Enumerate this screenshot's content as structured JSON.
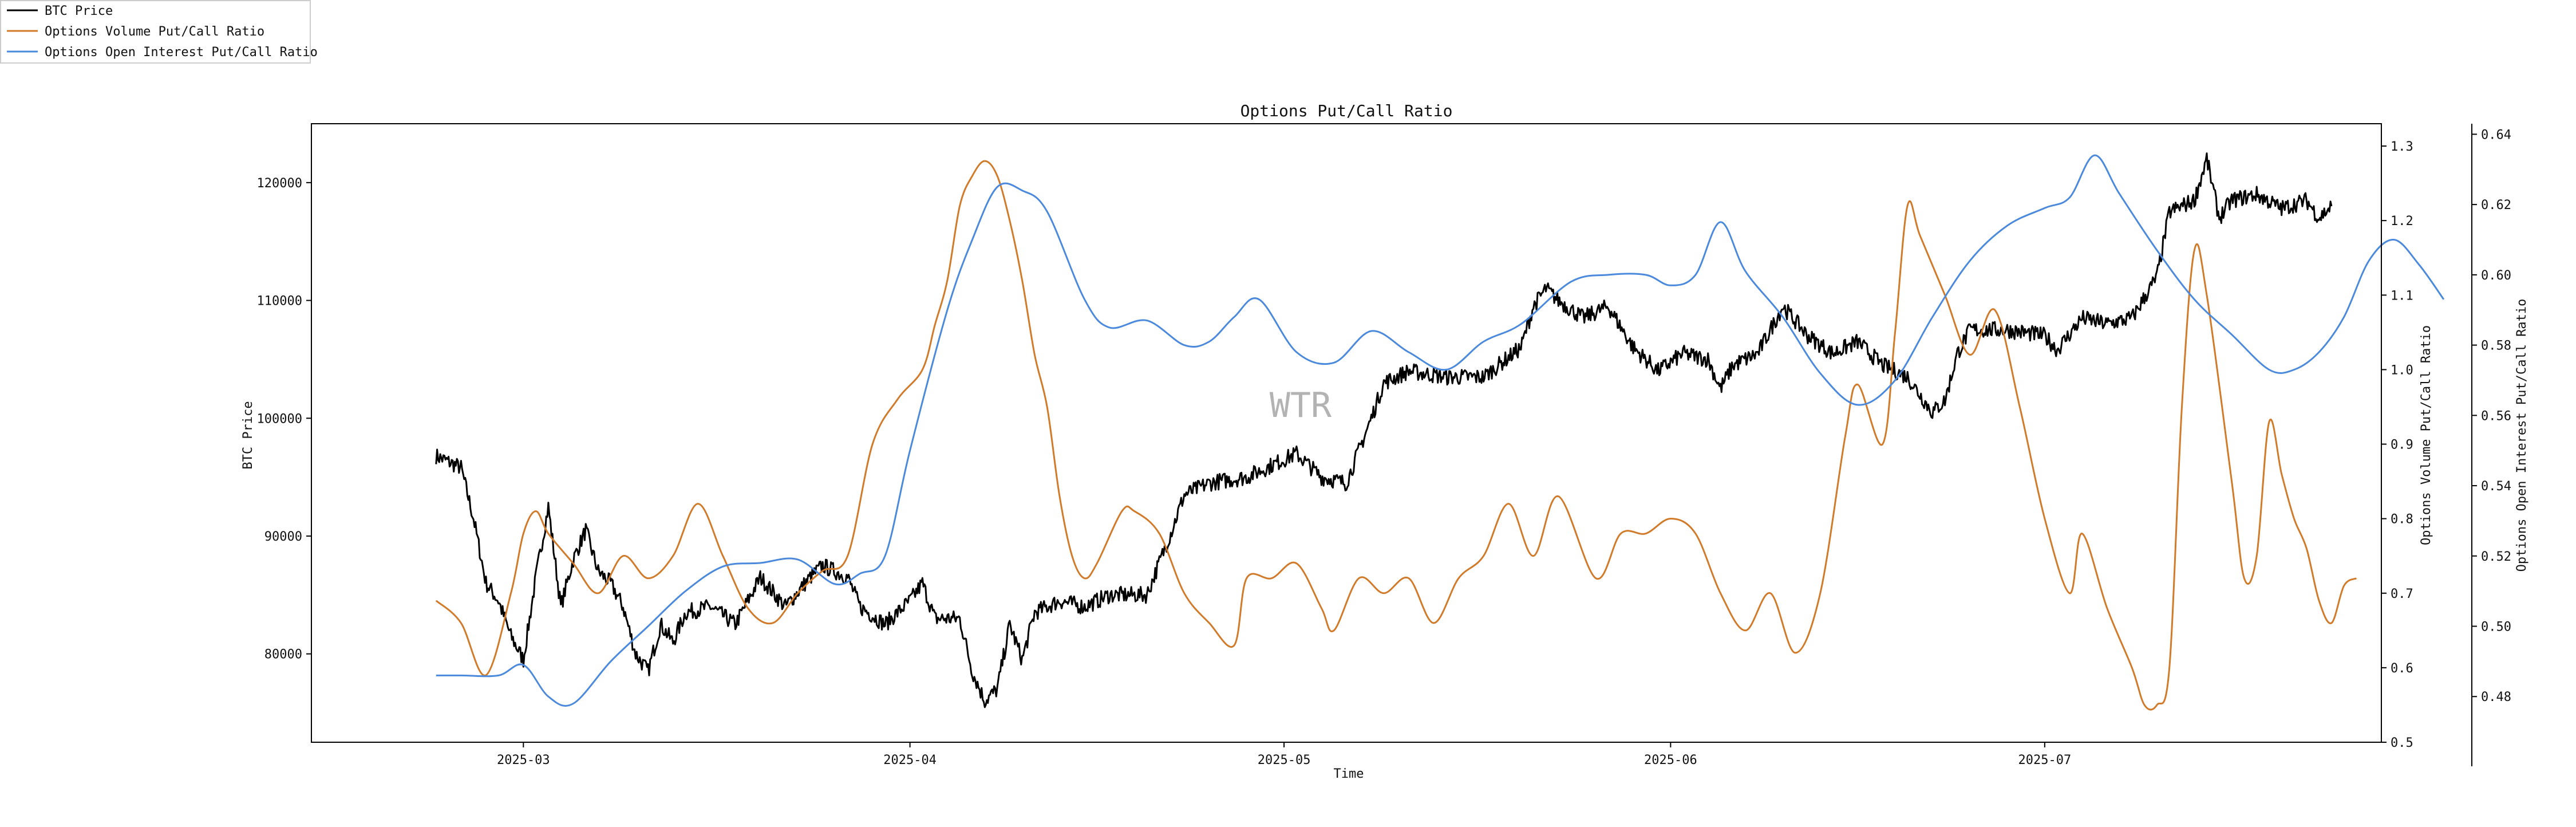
{
  "chart_data": {
    "type": "line",
    "title": "Options Put/Call Ratio",
    "xlabel": "Time",
    "ylabel_left": "BTC Price",
    "ylabel_right1": "Options Volume Put/Call Ratio",
    "ylabel_right2": "Options Open Interest Put/Call Ratio",
    "watermark": "WTR",
    "legend_position": "top-left",
    "grid": false,
    "x_range": [
      "2025-02-12",
      "2025-07-28"
    ],
    "x_ticks": [
      "2025-03",
      "2025-04",
      "2025-05",
      "2025-06",
      "2025-07"
    ],
    "x_tick_dates": [
      "2025-03-01",
      "2025-04-01",
      "2025-05-01",
      "2025-06-01",
      "2025-07-01"
    ],
    "y_left": {
      "lim": [
        72500,
        125000
      ],
      "ticks": [
        80000,
        90000,
        100000,
        110000,
        120000
      ]
    },
    "y_right1": {
      "lim": [
        0.5,
        1.33
      ],
      "ticks": [
        0.5,
        0.6,
        0.7,
        0.8,
        0.9,
        1.0,
        1.1,
        1.2,
        1.3
      ],
      "tick_labels": [
        "0.5",
        "0.6",
        "0.7",
        "0.8",
        "0.9",
        "1.0",
        "1.1",
        "1.2",
        "1.3"
      ]
    },
    "y_right2": {
      "lim": [
        0.467,
        0.643
      ],
      "ticks": [
        0.48,
        0.5,
        0.52,
        0.54,
        0.56,
        0.58,
        0.6,
        0.62,
        0.64
      ],
      "tick_labels": [
        "0.48",
        "0.50",
        "0.52",
        "0.54",
        "0.56",
        "0.58",
        "0.60",
        "0.62",
        "0.64"
      ]
    },
    "series": [
      {
        "name": "BTC Price",
        "axis": "left",
        "color": "#000000",
        "points": [
          [
            "2025-02-22",
            96800
          ],
          [
            "2025-02-24",
            95800
          ],
          [
            "2025-02-25",
            91500
          ],
          [
            "2025-02-26",
            86000
          ],
          [
            "2025-02-27",
            84500
          ],
          [
            "2025-02-28",
            81500
          ],
          [
            "2025-03-01",
            79500
          ],
          [
            "2025-03-02",
            86500
          ],
          [
            "2025-03-03",
            92500
          ],
          [
            "2025-03-04",
            84000
          ],
          [
            "2025-03-05",
            88000
          ],
          [
            "2025-03-06",
            90500
          ],
          [
            "2025-03-07",
            87000
          ],
          [
            "2025-03-08",
            86000
          ],
          [
            "2025-03-09",
            84000
          ],
          [
            "2025-03-10",
            80000
          ],
          [
            "2025-03-11",
            78500
          ],
          [
            "2025-03-12",
            82500
          ],
          [
            "2025-03-13",
            81000
          ],
          [
            "2025-03-14",
            83500
          ],
          [
            "2025-03-16",
            84000
          ],
          [
            "2025-03-18",
            82500
          ],
          [
            "2025-03-20",
            86500
          ],
          [
            "2025-03-22",
            84000
          ],
          [
            "2025-03-24",
            86500
          ],
          [
            "2025-03-25",
            87500
          ],
          [
            "2025-03-27",
            86500
          ],
          [
            "2025-03-28",
            84000
          ],
          [
            "2025-03-30",
            82500
          ],
          [
            "2025-04-01",
            84500
          ],
          [
            "2025-04-02",
            86000
          ],
          [
            "2025-04-03",
            83000
          ],
          [
            "2025-04-05",
            83000
          ],
          [
            "2025-04-06",
            78500
          ],
          [
            "2025-04-07",
            76000
          ],
          [
            "2025-04-08",
            77000
          ],
          [
            "2025-04-09",
            82500
          ],
          [
            "2025-04-10",
            79500
          ],
          [
            "2025-04-11",
            83500
          ],
          [
            "2025-04-13",
            84500
          ],
          [
            "2025-04-15",
            84000
          ],
          [
            "2025-04-17",
            85000
          ],
          [
            "2025-04-20",
            85000
          ],
          [
            "2025-04-22",
            90500
          ],
          [
            "2025-04-23",
            93500
          ],
          [
            "2025-04-25",
            94500
          ],
          [
            "2025-04-28",
            95000
          ],
          [
            "2025-05-01",
            96500
          ],
          [
            "2025-05-02",
            97000
          ],
          [
            "2025-05-04",
            95000
          ],
          [
            "2025-05-06",
            94500
          ],
          [
            "2025-05-08",
            100000
          ],
          [
            "2025-05-09",
            103000
          ],
          [
            "2025-05-11",
            104000
          ],
          [
            "2025-05-14",
            103500
          ],
          [
            "2025-05-17",
            103500
          ],
          [
            "2025-05-20",
            106000
          ],
          [
            "2025-05-21",
            109500
          ],
          [
            "2025-05-22",
            111000
          ],
          [
            "2025-05-23",
            110000
          ],
          [
            "2025-05-25",
            108500
          ],
          [
            "2025-05-27",
            109500
          ],
          [
            "2025-05-29",
            106000
          ],
          [
            "2025-05-31",
            104000
          ],
          [
            "2025-06-02",
            105500
          ],
          [
            "2025-06-04",
            105000
          ],
          [
            "2025-06-05",
            102500
          ],
          [
            "2025-06-06",
            104500
          ],
          [
            "2025-06-08",
            105500
          ],
          [
            "2025-06-10",
            109500
          ],
          [
            "2025-06-12",
            107000
          ],
          [
            "2025-06-14",
            105500
          ],
          [
            "2025-06-16",
            106500
          ],
          [
            "2025-06-18",
            104500
          ],
          [
            "2025-06-20",
            103500
          ],
          [
            "2025-06-22",
            100500
          ],
          [
            "2025-06-23",
            101500
          ],
          [
            "2025-06-24",
            105500
          ],
          [
            "2025-06-25",
            107500
          ],
          [
            "2025-06-28",
            107500
          ],
          [
            "2025-07-01",
            107000
          ],
          [
            "2025-07-02",
            105800
          ],
          [
            "2025-07-04",
            108500
          ],
          [
            "2025-07-06",
            108000
          ],
          [
            "2025-07-08",
            108500
          ],
          [
            "2025-07-10",
            112000
          ],
          [
            "2025-07-11",
            117500
          ],
          [
            "2025-07-13",
            118500
          ],
          [
            "2025-07-14",
            122000
          ],
          [
            "2025-07-15",
            117000
          ],
          [
            "2025-07-16",
            118500
          ],
          [
            "2025-07-18",
            119000
          ],
          [
            "2025-07-20",
            117800
          ],
          [
            "2025-07-22",
            118500
          ],
          [
            "2025-07-23",
            117000
          ],
          [
            "2025-07-24",
            118000
          ]
        ]
      },
      {
        "name": "Options Volume Put/Call Ratio",
        "axis": "right1",
        "color": "#d07a2a",
        "points": [
          [
            "2025-02-22",
            0.69
          ],
          [
            "2025-02-24",
            0.66
          ],
          [
            "2025-02-26",
            0.59
          ],
          [
            "2025-02-28",
            0.7
          ],
          [
            "2025-03-01",
            0.78
          ],
          [
            "2025-03-02",
            0.81
          ],
          [
            "2025-03-03",
            0.78
          ],
          [
            "2025-03-05",
            0.74
          ],
          [
            "2025-03-07",
            0.7
          ],
          [
            "2025-03-09",
            0.75
          ],
          [
            "2025-03-11",
            0.72
          ],
          [
            "2025-03-13",
            0.75
          ],
          [
            "2025-03-15",
            0.82
          ],
          [
            "2025-03-17",
            0.75
          ],
          [
            "2025-03-19",
            0.68
          ],
          [
            "2025-03-21",
            0.66
          ],
          [
            "2025-03-23",
            0.7
          ],
          [
            "2025-03-25",
            0.73
          ],
          [
            "2025-03-27",
            0.75
          ],
          [
            "2025-03-29",
            0.9
          ],
          [
            "2025-03-31",
            0.96
          ],
          [
            "2025-04-02",
            1.0
          ],
          [
            "2025-04-03",
            1.06
          ],
          [
            "2025-04-04",
            1.12
          ],
          [
            "2025-04-05",
            1.22
          ],
          [
            "2025-04-06",
            1.26
          ],
          [
            "2025-04-07",
            1.28
          ],
          [
            "2025-04-08",
            1.26
          ],
          [
            "2025-04-09",
            1.2
          ],
          [
            "2025-04-10",
            1.12
          ],
          [
            "2025-04-11",
            1.02
          ],
          [
            "2025-04-12",
            0.95
          ],
          [
            "2025-04-13",
            0.83
          ],
          [
            "2025-04-14",
            0.75
          ],
          [
            "2025-04-15",
            0.72
          ],
          [
            "2025-04-16",
            0.74
          ],
          [
            "2025-04-18",
            0.81
          ],
          [
            "2025-04-19",
            0.81
          ],
          [
            "2025-04-21",
            0.78
          ],
          [
            "2025-04-23",
            0.7
          ],
          [
            "2025-04-25",
            0.66
          ],
          [
            "2025-04-27",
            0.63
          ],
          [
            "2025-04-28",
            0.72
          ],
          [
            "2025-04-30",
            0.72
          ],
          [
            "2025-05-02",
            0.74
          ],
          [
            "2025-05-04",
            0.68
          ],
          [
            "2025-05-05",
            0.65
          ],
          [
            "2025-05-07",
            0.72
          ],
          [
            "2025-05-09",
            0.7
          ],
          [
            "2025-05-11",
            0.72
          ],
          [
            "2025-05-13",
            0.66
          ],
          [
            "2025-05-15",
            0.72
          ],
          [
            "2025-05-17",
            0.75
          ],
          [
            "2025-05-19",
            0.82
          ],
          [
            "2025-05-21",
            0.75
          ],
          [
            "2025-05-23",
            0.83
          ],
          [
            "2025-05-26",
            0.72
          ],
          [
            "2025-05-28",
            0.78
          ],
          [
            "2025-05-30",
            0.78
          ],
          [
            "2025-06-01",
            0.8
          ],
          [
            "2025-06-03",
            0.78
          ],
          [
            "2025-06-05",
            0.7
          ],
          [
            "2025-06-07",
            0.65
          ],
          [
            "2025-06-09",
            0.7
          ],
          [
            "2025-06-11",
            0.62
          ],
          [
            "2025-06-13",
            0.7
          ],
          [
            "2025-06-15",
            0.91
          ],
          [
            "2025-06-16",
            0.98
          ],
          [
            "2025-06-18",
            0.9
          ],
          [
            "2025-06-19",
            1.05
          ],
          [
            "2025-06-20",
            1.22
          ],
          [
            "2025-06-21",
            1.18
          ],
          [
            "2025-06-23",
            1.1
          ],
          [
            "2025-06-25",
            1.02
          ],
          [
            "2025-06-27",
            1.08
          ],
          [
            "2025-06-29",
            0.95
          ],
          [
            "2025-07-01",
            0.8
          ],
          [
            "2025-07-03",
            0.7
          ],
          [
            "2025-07-04",
            0.78
          ],
          [
            "2025-07-06",
            0.68
          ],
          [
            "2025-07-08",
            0.6
          ],
          [
            "2025-07-09",
            0.55
          ],
          [
            "2025-07-10",
            0.55
          ],
          [
            "2025-07-11",
            0.6
          ],
          [
            "2025-07-12",
            0.95
          ],
          [
            "2025-07-13",
            1.16
          ],
          [
            "2025-07-14",
            1.1
          ],
          [
            "2025-07-16",
            0.85
          ],
          [
            "2025-07-17",
            0.72
          ],
          [
            "2025-07-18",
            0.75
          ],
          [
            "2025-07-19",
            0.93
          ],
          [
            "2025-07-20",
            0.86
          ],
          [
            "2025-07-21",
            0.8
          ],
          [
            "2025-07-22",
            0.76
          ],
          [
            "2025-07-23",
            0.69
          ],
          [
            "2025-07-24",
            0.66
          ],
          [
            "2025-07-25",
            0.71
          ],
          [
            "2025-07-26",
            0.72
          ]
        ]
      },
      {
        "name": "Options Open Interest Put/Call Ratio",
        "axis": "right2",
        "color": "#4a89dc",
        "points": [
          [
            "2025-02-22",
            0.486
          ],
          [
            "2025-02-24",
            0.486
          ],
          [
            "2025-02-27",
            0.486
          ],
          [
            "2025-03-01",
            0.489
          ],
          [
            "2025-03-03",
            0.48
          ],
          [
            "2025-03-05",
            0.478
          ],
          [
            "2025-03-08",
            0.49
          ],
          [
            "2025-03-11",
            0.5
          ],
          [
            "2025-03-14",
            0.51
          ],
          [
            "2025-03-17",
            0.517
          ],
          [
            "2025-03-20",
            0.518
          ],
          [
            "2025-03-23",
            0.519
          ],
          [
            "2025-03-26",
            0.512
          ],
          [
            "2025-03-28",
            0.515
          ],
          [
            "2025-03-30",
            0.52
          ],
          [
            "2025-04-01",
            0.55
          ],
          [
            "2025-04-04",
            0.59
          ],
          [
            "2025-04-06",
            0.61
          ],
          [
            "2025-04-08",
            0.625
          ],
          [
            "2025-04-10",
            0.624
          ],
          [
            "2025-04-12",
            0.618
          ],
          [
            "2025-04-15",
            0.593
          ],
          [
            "2025-04-17",
            0.585
          ],
          [
            "2025-04-20",
            0.587
          ],
          [
            "2025-04-23",
            0.58
          ],
          [
            "2025-04-25",
            0.581
          ],
          [
            "2025-04-27",
            0.588
          ],
          [
            "2025-04-29",
            0.593
          ],
          [
            "2025-05-02",
            0.578
          ],
          [
            "2025-05-05",
            0.575
          ],
          [
            "2025-05-08",
            0.584
          ],
          [
            "2025-05-11",
            0.578
          ],
          [
            "2025-05-14",
            0.573
          ],
          [
            "2025-05-17",
            0.581
          ],
          [
            "2025-05-20",
            0.586
          ],
          [
            "2025-05-24",
            0.598
          ],
          [
            "2025-05-27",
            0.6
          ],
          [
            "2025-05-30",
            0.6
          ],
          [
            "2025-06-01",
            0.597
          ],
          [
            "2025-06-03",
            0.6
          ],
          [
            "2025-06-05",
            0.615
          ],
          [
            "2025-06-07",
            0.601
          ],
          [
            "2025-06-10",
            0.588
          ],
          [
            "2025-06-13",
            0.572
          ],
          [
            "2025-06-16",
            0.563
          ],
          [
            "2025-06-19",
            0.57
          ],
          [
            "2025-06-22",
            0.588
          ],
          [
            "2025-06-25",
            0.604
          ],
          [
            "2025-06-28",
            0.614
          ],
          [
            "2025-07-01",
            0.619
          ],
          [
            "2025-07-03",
            0.622
          ],
          [
            "2025-07-05",
            0.634
          ],
          [
            "2025-07-07",
            0.623
          ],
          [
            "2025-07-10",
            0.607
          ],
          [
            "2025-07-13",
            0.593
          ],
          [
            "2025-07-16",
            0.583
          ],
          [
            "2025-07-19",
            0.573
          ],
          [
            "2025-07-21",
            0.573
          ],
          [
            "2025-07-23",
            0.578
          ],
          [
            "2025-07-25",
            0.588
          ],
          [
            "2025-07-27",
            0.604
          ],
          [
            "2025-07-29",
            0.61
          ],
          [
            "2025-07-31",
            0.603
          ],
          [
            "2025-08-02",
            0.593
          ]
        ]
      }
    ]
  }
}
